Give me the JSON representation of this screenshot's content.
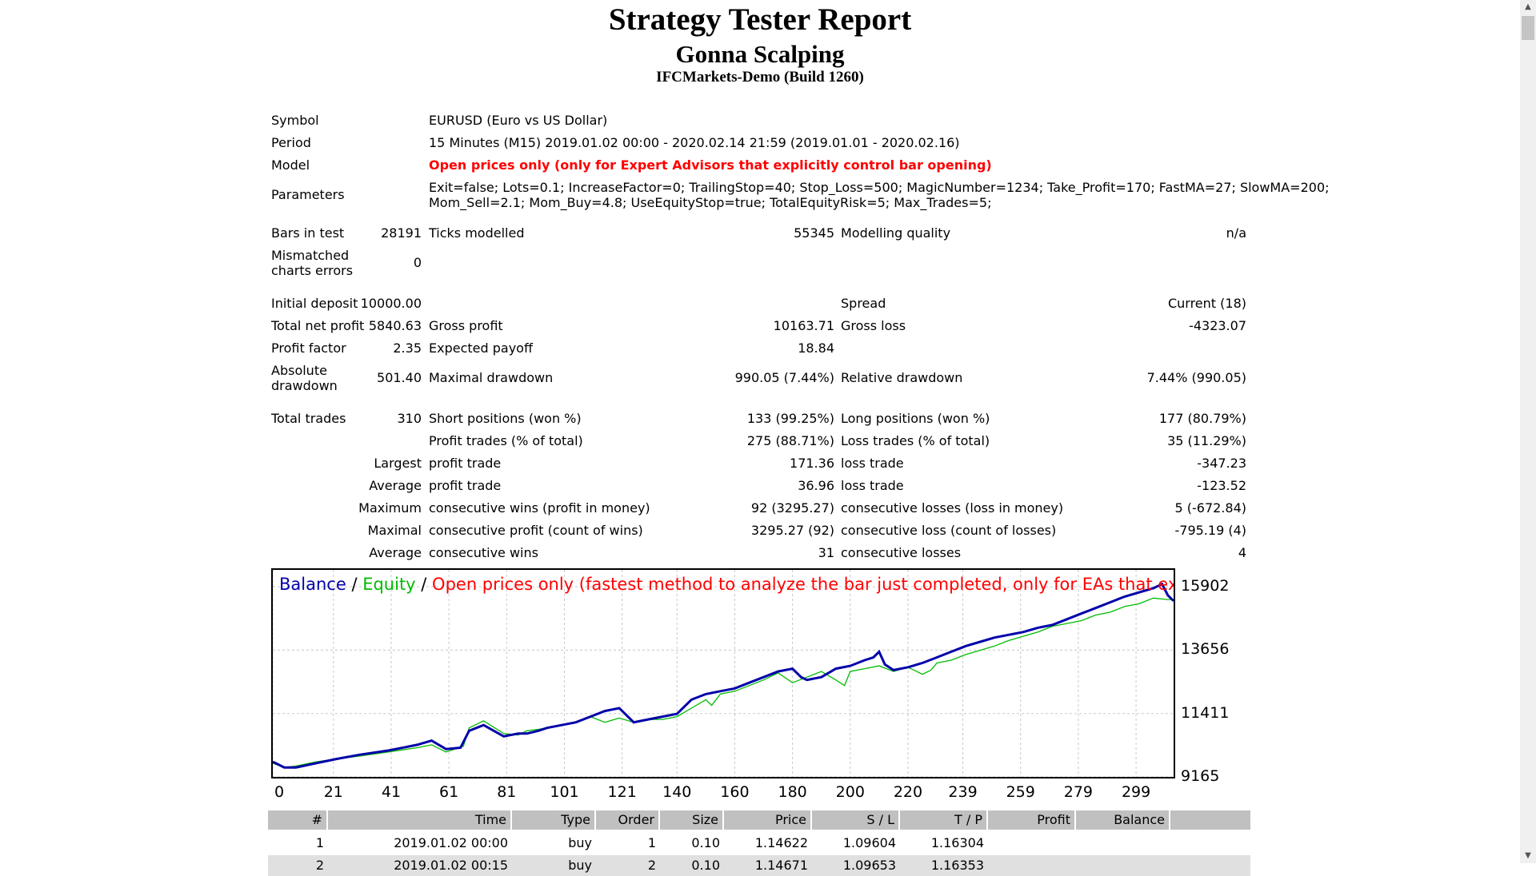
{
  "header": {
    "title": "Strategy Tester Report",
    "ea_name": "Gonna Scalping",
    "server": "IFCMarkets-Demo (Build 1260)"
  },
  "settings": {
    "symbol_label": "Symbol",
    "symbol": "EURUSD (Euro vs US Dollar)",
    "period_label": "Period",
    "period": "15 Minutes (M15) 2019.01.02 00:00 - 2020.02.14 21:59 (2019.01.01 - 2020.02.16)",
    "model_label": "Model",
    "model": "Open prices only (only for Expert Advisors that explicitly control bar opening)",
    "parameters_label": "Parameters",
    "parameters_line1": "Exit=false; Lots=0.1; IncreaseFactor=0; TrailingStop=40; Stop_Loss=500; MagicNumber=1234; Take_Profit=170; FastMA=27; SlowMA=200;",
    "parameters_line2": "Mom_Sell=2.1; Mom_Buy=4.8; UseEquityStop=true; TotalEquityRisk=5; Max_Trades=5;"
  },
  "test": {
    "bars_label": "Bars in test",
    "bars": "28191",
    "ticks_label": "Ticks modelled",
    "ticks": "55345",
    "quality_label": "Modelling quality",
    "quality": "n/a",
    "mismatch_label_1": "Mismatched",
    "mismatch_label_2": "charts errors",
    "mismatch": "0"
  },
  "results": {
    "initial_deposit_label": "Initial deposit",
    "initial_deposit": "10000.00",
    "spread_label": "Spread",
    "spread": "Current (18)",
    "net_profit_label": "Total net profit",
    "net_profit": "5840.63",
    "gross_profit_label": "Gross profit",
    "gross_profit": "10163.71",
    "gross_loss_label": "Gross loss",
    "gross_loss": "-4323.07",
    "profit_factor_label": "Profit factor",
    "profit_factor": "2.35",
    "expected_payoff_label": "Expected payoff",
    "expected_payoff": "18.84",
    "abs_dd_label_1": "Absolute",
    "abs_dd_label_2": "drawdown",
    "abs_dd": "501.40",
    "max_dd_label": "Maximal drawdown",
    "max_dd": "990.05 (7.44%)",
    "rel_dd_label": "Relative drawdown",
    "rel_dd": "7.44% (990.05)"
  },
  "trades": {
    "total_label": "Total trades",
    "total": "310",
    "short_label": "Short positions (won %)",
    "short": "133 (99.25%)",
    "long_label": "Long positions (won %)",
    "long": "177 (80.79%)",
    "profit_trades_label": "Profit trades (% of total)",
    "profit_trades": "275 (88.71%)",
    "loss_trades_label": "Loss trades (% of total)",
    "loss_trades": "35 (11.29%)",
    "largest_label": "Largest",
    "largest_profit_label": "profit trade",
    "largest_profit": "171.36",
    "largest_loss_label": "loss trade",
    "largest_loss": "-347.23",
    "average_label": "Average",
    "average_profit_label": "profit trade",
    "average_profit": "36.96",
    "average_loss_label": "loss trade",
    "average_loss": "-123.52",
    "maximum_label": "Maximum",
    "max_cons_wins_label": "consecutive wins (profit in money)",
    "max_cons_wins": "92 (3295.27)",
    "max_cons_losses_label": "consecutive losses (loss in money)",
    "max_cons_losses": "5 (-672.84)",
    "maximal_label": "Maximal",
    "maximal_cons_profit_label": "consecutive profit (count of wins)",
    "maximal_cons_profit": "3295.27 (92)",
    "maximal_cons_loss_label": "consecutive loss (count of losses)",
    "maximal_cons_loss": "-795.19 (4)",
    "average2_label": "Average",
    "avg_cons_wins_label": "consecutive wins",
    "avg_cons_wins": "31",
    "avg_cons_losses_label": "consecutive losses",
    "avg_cons_losses": "4"
  },
  "chart_legend": {
    "balance": "Balance",
    "sep1": " / ",
    "equity": "Equity",
    "sep2": " / ",
    "model_note": "Open prices only (fastest method to analyze the bar just completed, only for EAs that explicitly control b",
    "balance_color": "#0000aa",
    "equity_color": "#00bb00",
    "note_color": "#ff0000"
  },
  "chart_data": {
    "type": "line",
    "x_ticks": [
      "0",
      "21",
      "41",
      "61",
      "81",
      "101",
      "121",
      "140",
      "160",
      "180",
      "200",
      "220",
      "239",
      "259",
      "279",
      "299"
    ],
    "y_ticks": [
      "15902",
      "13656",
      "11411",
      "9165"
    ],
    "ylim": [
      9165,
      16500
    ],
    "xlim": [
      0,
      312
    ],
    "grid": true,
    "series": [
      {
        "name": "Balance",
        "color": "#0000aa",
        "x": [
          0,
          4,
          8,
          15,
          22,
          30,
          40,
          50,
          55,
          60,
          65,
          68,
          73,
          80,
          85,
          88,
          92,
          95,
          100,
          105,
          110,
          115,
          120,
          122,
          125,
          130,
          135,
          140,
          145,
          150,
          155,
          160,
          165,
          170,
          175,
          180,
          183,
          185,
          190,
          195,
          200,
          205,
          208,
          210,
          212,
          215,
          220,
          225,
          230,
          235,
          240,
          245,
          250,
          255,
          260,
          265,
          270,
          275,
          280,
          285,
          290,
          295,
          300,
          305,
          308,
          310,
          312
        ],
        "y": [
          9700,
          9500,
          9500,
          9650,
          9800,
          9950,
          10100,
          10300,
          10450,
          10150,
          10200,
          10800,
          11000,
          10600,
          10700,
          10700,
          10800,
          10900,
          11000,
          11100,
          11300,
          11500,
          11600,
          11400,
          11100,
          11200,
          11300,
          11400,
          11900,
          12100,
          12200,
          12300,
          12500,
          12700,
          12900,
          13000,
          12700,
          12600,
          12700,
          13000,
          13100,
          13300,
          13400,
          13600,
          13150,
          12950,
          13050,
          13200,
          13400,
          13600,
          13800,
          13950,
          14100,
          14200,
          14300,
          14450,
          14550,
          14750,
          14950,
          15150,
          15350,
          15550,
          15700,
          15850,
          16000,
          15600,
          15400
        ]
      },
      {
        "name": "Equity",
        "color": "#00bb00",
        "x": [
          0,
          4,
          8,
          15,
          22,
          30,
          40,
          50,
          55,
          60,
          63,
          66,
          68,
          73,
          80,
          85,
          88,
          92,
          95,
          100,
          105,
          110,
          115,
          120,
          125,
          130,
          135,
          140,
          145,
          150,
          152,
          155,
          160,
          165,
          170,
          175,
          180,
          185,
          190,
          195,
          198,
          200,
          205,
          210,
          215,
          220,
          225,
          228,
          230,
          235,
          240,
          245,
          250,
          255,
          260,
          265,
          270,
          275,
          280,
          285,
          290,
          295,
          300,
          305,
          310,
          312
        ],
        "y": [
          9650,
          9500,
          9550,
          9700,
          9800,
          9900,
          10050,
          10200,
          10300,
          10050,
          10150,
          10250,
          10900,
          11150,
          10700,
          10650,
          10800,
          10850,
          10900,
          11000,
          11100,
          11300,
          11100,
          11250,
          11100,
          11200,
          11200,
          11300,
          11600,
          11900,
          11700,
          12100,
          12200,
          12400,
          12600,
          12850,
          12500,
          12700,
          12900,
          12600,
          12400,
          12900,
          13000,
          13100,
          12900,
          13050,
          12800,
          12950,
          13200,
          13300,
          13500,
          13650,
          13800,
          14000,
          14150,
          14300,
          14500,
          14600,
          14700,
          14900,
          15000,
          15200,
          15300,
          15500,
          15450,
          15450
        ]
      }
    ]
  },
  "table": {
    "headers": [
      "#",
      "Time",
      "Type",
      "Order",
      "Size",
      "Price",
      "S / L",
      "T / P",
      "Profit",
      "Balance"
    ],
    "rows": [
      [
        "1",
        "2019.01.02 00:00",
        "buy",
        "1",
        "0.10",
        "1.14622",
        "1.09604",
        "1.16304",
        "",
        ""
      ],
      [
        "2",
        "2019.01.02 00:15",
        "buy",
        "2",
        "0.10",
        "1.14671",
        "1.09653",
        "1.16353",
        "",
        ""
      ]
    ]
  }
}
